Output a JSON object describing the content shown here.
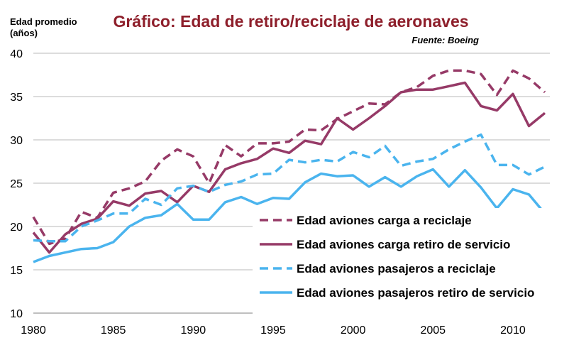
{
  "chart_data": {
    "type": "line",
    "title": "Gráfico: Edad de retiro/reciclaje de aeronaves",
    "source": "Fuente: Boeing",
    "ylabel_lines": [
      "Edad promedio",
      "(años)"
    ],
    "xlabel": "",
    "xlim": [
      1980,
      2012
    ],
    "ylim": [
      10,
      40
    ],
    "grid": true,
    "legend_position": "bottom-right",
    "x_ticks": [
      1980,
      1985,
      1990,
      1995,
      2000,
      2005,
      2010
    ],
    "y_ticks": [
      10,
      15,
      20,
      25,
      30,
      35,
      40
    ],
    "x": [
      1980,
      1981,
      1982,
      1983,
      1984,
      1985,
      1986,
      1987,
      1988,
      1989,
      1990,
      1991,
      1992,
      1993,
      1994,
      1995,
      1996,
      1997,
      1998,
      1999,
      2000,
      2001,
      2002,
      2003,
      2004,
      2005,
      2006,
      2007,
      2008,
      2009,
      2010,
      2011,
      2012
    ],
    "series": [
      {
        "name": "Edad aviones carga a reciclaje",
        "color": "#963a67",
        "dashed": true,
        "values": [
          21.1,
          18.0,
          18.6,
          21.7,
          21.0,
          23.9,
          24.4,
          25.2,
          27.6,
          28.9,
          28.1,
          25.0,
          29.4,
          28.1,
          29.6,
          29.6,
          29.8,
          31.2,
          31.1,
          32.4,
          33.3,
          34.2,
          34.1,
          35.5,
          36.1,
          37.4,
          38.0,
          38.0,
          37.6,
          35.2,
          38.0,
          37.1,
          35.5
        ]
      },
      {
        "name": "Edad aviones carga retiro de servicio",
        "color": "#963a67",
        "dashed": false,
        "values": [
          19.3,
          17.0,
          19.1,
          20.3,
          20.9,
          22.9,
          22.4,
          23.8,
          24.1,
          22.8,
          24.7,
          24.0,
          26.6,
          27.3,
          27.8,
          29.0,
          28.5,
          29.9,
          29.5,
          32.5,
          31.2,
          32.5,
          33.9,
          35.5,
          35.8,
          35.8,
          36.2,
          36.6,
          33.9,
          33.4,
          35.3,
          31.6,
          33.1
        ]
      },
      {
        "name": "Edad aviones pasajeros a reciclaje",
        "color": "#4ab4ee",
        "dashed": true,
        "values": [
          18.4,
          18.3,
          18.3,
          20.0,
          20.7,
          21.5,
          21.5,
          23.2,
          22.5,
          24.4,
          24.7,
          24.0,
          24.8,
          25.2,
          26.0,
          26.1,
          27.7,
          27.4,
          27.7,
          27.5,
          28.6,
          28.0,
          29.3,
          27.0,
          27.5,
          27.8,
          28.9,
          29.8,
          30.6,
          27.1,
          27.1,
          26.0,
          26.9
        ]
      },
      {
        "name": "Edad aviones pasajeros retiro de servicio",
        "color": "#4ab4ee",
        "dashed": false,
        "values": [
          15.9,
          16.6,
          17.0,
          17.4,
          17.5,
          18.2,
          20.0,
          21.0,
          21.3,
          22.6,
          20.8,
          20.8,
          22.8,
          23.4,
          22.6,
          23.3,
          23.2,
          25.1,
          26.1,
          25.8,
          25.9,
          24.6,
          25.7,
          24.6,
          25.8,
          26.6,
          24.6,
          26.5,
          24.5,
          22.1,
          24.3,
          23.7,
          21.5
        ]
      }
    ]
  }
}
